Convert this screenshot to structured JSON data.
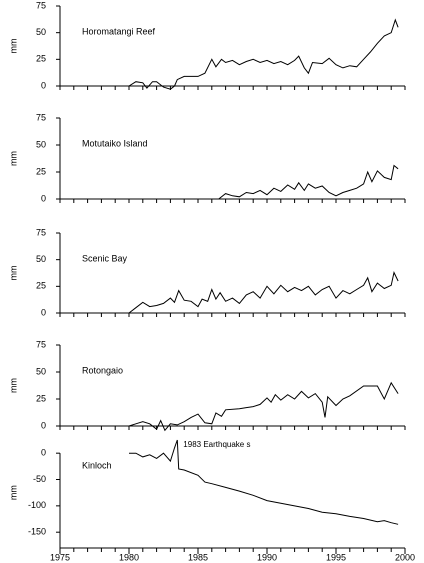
{
  "chart_data": [
    {
      "type": "line",
      "title": "Horomatangi Reef",
      "y_label": "mm",
      "color": "#000000",
      "x": [
        1980,
        1980.5,
        1981,
        1981.3,
        1981.7,
        1982,
        1982.5,
        1983,
        1983.3,
        1983.5,
        1984,
        1985,
        1985.5,
        1986,
        1986.3,
        1986.7,
        1987,
        1987.5,
        1988,
        1988.5,
        1989,
        1989.5,
        1990,
        1990.5,
        1991,
        1991.5,
        1992,
        1992.3,
        1992.7,
        1993,
        1993.3,
        1994,
        1994.5,
        1995,
        1995.5,
        1996,
        1996.5,
        1997,
        1997.5,
        1998,
        1998.5,
        1999,
        1999.3,
        1999.5
      ],
      "values": [
        0,
        4,
        3,
        -2,
        4,
        4,
        -1,
        -3,
        0,
        6,
        9,
        9,
        12,
        25,
        18,
        25,
        22,
        24,
        20,
        23,
        25,
        22,
        24,
        21,
        23,
        20,
        24,
        28,
        17,
        12,
        22,
        21,
        26,
        20,
        17,
        19,
        18,
        25,
        32,
        40,
        47,
        50,
        62,
        55
      ],
      "xlim": [
        1975,
        2000
      ],
      "ylim": [
        0,
        75
      ],
      "yticks": [
        0,
        25,
        50,
        75
      ]
    },
    {
      "type": "line",
      "title": "Motutaiko Island",
      "y_label": "mm",
      "color": "#000000",
      "x": [
        1986.5,
        1987,
        1987.5,
        1988,
        1988.5,
        1989,
        1989.5,
        1990,
        1990.5,
        1991,
        1991.5,
        1992,
        1992.3,
        1992.7,
        1993,
        1993.5,
        1994,
        1994.5,
        1995,
        1995.5,
        1996,
        1996.5,
        1997,
        1997.3,
        1997.6,
        1998,
        1998.5,
        1999,
        1999.2,
        1999.5
      ],
      "values": [
        0,
        5,
        3,
        2,
        6,
        5,
        8,
        4,
        10,
        7,
        13,
        9,
        15,
        8,
        14,
        10,
        12,
        6,
        3,
        6,
        8,
        10,
        14,
        25,
        16,
        26,
        20,
        18,
        31,
        28
      ],
      "xlim": [
        1975,
        2000
      ],
      "ylim": [
        0,
        75
      ],
      "yticks": [
        0,
        25,
        50,
        75
      ]
    },
    {
      "type": "line",
      "title": "Scenic Bay",
      "y_label": "mm",
      "color": "#000000",
      "x": [
        1980,
        1980.5,
        1981,
        1981.5,
        1982,
        1982.5,
        1983,
        1983.3,
        1983.6,
        1984,
        1984.5,
        1985,
        1985.3,
        1985.7,
        1986,
        1986.3,
        1986.6,
        1987,
        1987.5,
        1988,
        1988.5,
        1989,
        1989.5,
        1990,
        1990.5,
        1991,
        1991.5,
        1992,
        1992.5,
        1993,
        1993.5,
        1994,
        1994.5,
        1995,
        1995.5,
        1996,
        1996.5,
        1997,
        1997.3,
        1997.6,
        1998,
        1998.5,
        1999,
        1999.2,
        1999.5
      ],
      "values": [
        0,
        5,
        10,
        6,
        7,
        9,
        14,
        10,
        21,
        12,
        11,
        6,
        13,
        11,
        22,
        13,
        19,
        11,
        14,
        9,
        17,
        20,
        14,
        25,
        18,
        26,
        20,
        24,
        21,
        25,
        17,
        22,
        25,
        14,
        21,
        18,
        22,
        26,
        33,
        20,
        28,
        23,
        26,
        38,
        30
      ],
      "xlim": [
        1975,
        2000
      ],
      "ylim": [
        0,
        75
      ],
      "yticks": [
        0,
        25,
        50,
        75
      ]
    },
    {
      "type": "line",
      "title": "Rotongaio",
      "y_label": "mm",
      "color": "#000000",
      "x": [
        1980,
        1980.5,
        1981,
        1981.5,
        1982,
        1982.3,
        1982.6,
        1983,
        1983.5,
        1984,
        1984.5,
        1985,
        1985.5,
        1986,
        1986.3,
        1986.7,
        1987,
        1988,
        1988.5,
        1989,
        1989.5,
        1990,
        1990.3,
        1990.6,
        1991,
        1991.5,
        1992,
        1992.5,
        1993,
        1993.5,
        1994,
        1994.2,
        1994.4,
        1995,
        1995.5,
        1996,
        1997,
        1998,
        1998.5,
        1999,
        1999.5
      ],
      "values": [
        0,
        2,
        4,
        2,
        -3,
        5,
        -4,
        2,
        1,
        4,
        8,
        11,
        3,
        2,
        12,
        9,
        15,
        16,
        17,
        18,
        20,
        26,
        22,
        29,
        24,
        29,
        25,
        32,
        26,
        30,
        22,
        8,
        27,
        19,
        25,
        28,
        37,
        37,
        25,
        40,
        30
      ],
      "xlim": [
        1975,
        2000
      ],
      "ylim": [
        0,
        75
      ],
      "yticks": [
        0,
        25,
        50,
        75
      ]
    },
    {
      "type": "line",
      "title": "Kinloch",
      "y_label": "mm",
      "color": "#000000",
      "annotation": "1983 Earthquake s",
      "x": [
        1980,
        1980.5,
        1981,
        1981.5,
        1982,
        1982.5,
        1983,
        1983.3,
        1983.5,
        1983.6,
        1984,
        1985,
        1985.5,
        1986,
        1987,
        1988,
        1989,
        1990,
        1991,
        1992,
        1993,
        1994,
        1995,
        1996,
        1997,
        1998,
        1998.5,
        1999,
        1999.5
      ],
      "values": [
        0,
        0,
        -7,
        -3,
        -10,
        0,
        -15,
        10,
        25,
        -30,
        -32,
        -42,
        -55,
        -58,
        -65,
        -72,
        -80,
        -90,
        -95,
        -100,
        -105,
        -112,
        -115,
        -120,
        -124,
        -130,
        -128,
        -132,
        -135
      ],
      "xlim": [
        1975,
        2000
      ],
      "xticks": [
        1975,
        1980,
        1985,
        1990,
        1995,
        2000
      ],
      "ylim": [
        -180,
        25
      ],
      "yticks": [
        0,
        -50,
        -100,
        -150
      ]
    }
  ]
}
